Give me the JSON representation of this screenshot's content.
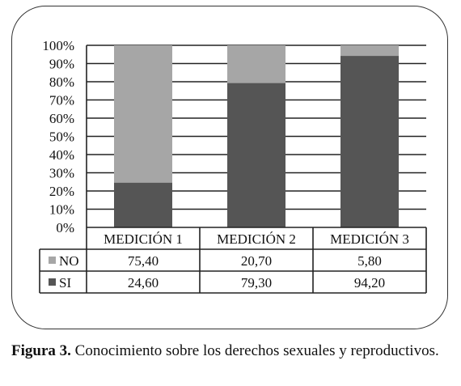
{
  "chart_data": {
    "type": "bar",
    "stacked": true,
    "categories": [
      "MEDICIÓN 1",
      "MEDICIÓN 2",
      "MEDICIÓN 3"
    ],
    "series": [
      {
        "name": "SI",
        "values": [
          24.6,
          79.3,
          94.2
        ],
        "labels": [
          "24,60",
          "79,30",
          "94,20"
        ],
        "color": "#555555"
      },
      {
        "name": "NO",
        "values": [
          75.4,
          20.7,
          5.8
        ],
        "labels": [
          "75,40",
          "20,70",
          "5,80"
        ],
        "color": "#a6a6a6"
      }
    ],
    "yticks": [
      "0%",
      "10%",
      "20%",
      "30%",
      "40%",
      "50%",
      "60%",
      "70%",
      "80%",
      "90%",
      "100%"
    ],
    "ylim": [
      0,
      100
    ],
    "grid": true,
    "legend": "data-table"
  },
  "caption": {
    "label": "Figura 3.",
    "text": "Conocimiento sobre los derechos sexuales y reproductivos."
  }
}
